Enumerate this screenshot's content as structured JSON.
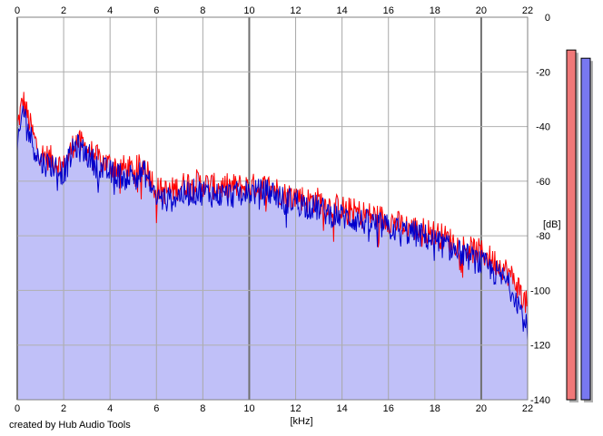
{
  "credit": "created by Hub Audio Tools",
  "chart_data": {
    "type": "area",
    "title": "",
    "xlabel": "[kHz]",
    "ylabel": "[dB]",
    "xlim": [
      0,
      22
    ],
    "ylim": [
      -140,
      0
    ],
    "x_ticks": [
      "0",
      "2",
      "4",
      "6",
      "8",
      "10",
      "12",
      "14",
      "16",
      "18",
      "20",
      "22"
    ],
    "y_ticks": [
      "0",
      "-20",
      "-40",
      "-60",
      "-80",
      "-100",
      "-120",
      "-140"
    ],
    "grid": true,
    "colors": {
      "fill": "#c0c0f8",
      "left": "#ff0000",
      "right": "#0000cc",
      "meter_left": "#f07878",
      "meter_right": "#7878f0"
    },
    "series": [
      {
        "x": [
          0,
          0.25,
          0.5,
          0.75,
          1,
          1.5,
          2,
          2.5,
          3,
          3.5,
          4,
          4.5,
          5,
          5.5,
          6,
          6.5,
          7,
          7.5,
          8,
          8.5,
          9,
          9.5,
          10,
          10.5,
          11,
          11.5,
          12,
          12.5,
          13,
          13.5,
          14,
          14.5,
          15,
          15.5,
          16,
          16.5,
          17,
          17.5,
          18,
          18.5,
          19,
          19.5,
          20,
          20.5,
          21,
          21.5,
          22
        ],
        "values": [
          -40,
          -30,
          -38,
          -45,
          -50,
          -52,
          -55,
          -45,
          -48,
          -52,
          -54,
          -55,
          -56,
          -54,
          -63,
          -64,
          -62,
          -60,
          -61,
          -62,
          -62,
          -62,
          -62,
          -62,
          -62,
          -65,
          -65,
          -67,
          -67,
          -69,
          -70,
          -71,
          -72,
          -73,
          -74,
          -76,
          -77,
          -78,
          -79,
          -81,
          -83,
          -85,
          -86,
          -89,
          -92,
          -97,
          -106
        ]
      },
      {
        "x": [
          0,
          0.25,
          0.5,
          0.75,
          1,
          1.5,
          2,
          2.5,
          3,
          3.5,
          4,
          4.5,
          5,
          5.5,
          6,
          6.5,
          7,
          7.5,
          8,
          8.5,
          9,
          9.5,
          10,
          10.5,
          11,
          11.5,
          12,
          12.5,
          13,
          13.5,
          14,
          14.5,
          15,
          15.5,
          16,
          16.5,
          17,
          17.5,
          18,
          18.5,
          19,
          19.5,
          20,
          20.5,
          21,
          21.5,
          22
        ],
        "values": [
          -50,
          -33,
          -42,
          -48,
          -53,
          -54,
          -57,
          -47,
          -50,
          -55,
          -57,
          -58,
          -58,
          -57,
          -66,
          -67,
          -65,
          -64,
          -64,
          -65,
          -65,
          -65,
          -64,
          -64,
          -64,
          -67,
          -67,
          -69,
          -70,
          -72,
          -73,
          -74,
          -75,
          -76,
          -77,
          -78,
          -79,
          -80,
          -82,
          -84,
          -86,
          -88,
          -90,
          -93,
          -96,
          -102,
          -115
        ]
      }
    ],
    "meters": [
      {
        "level_db": -12
      },
      {
        "level_db": -15
      }
    ]
  }
}
